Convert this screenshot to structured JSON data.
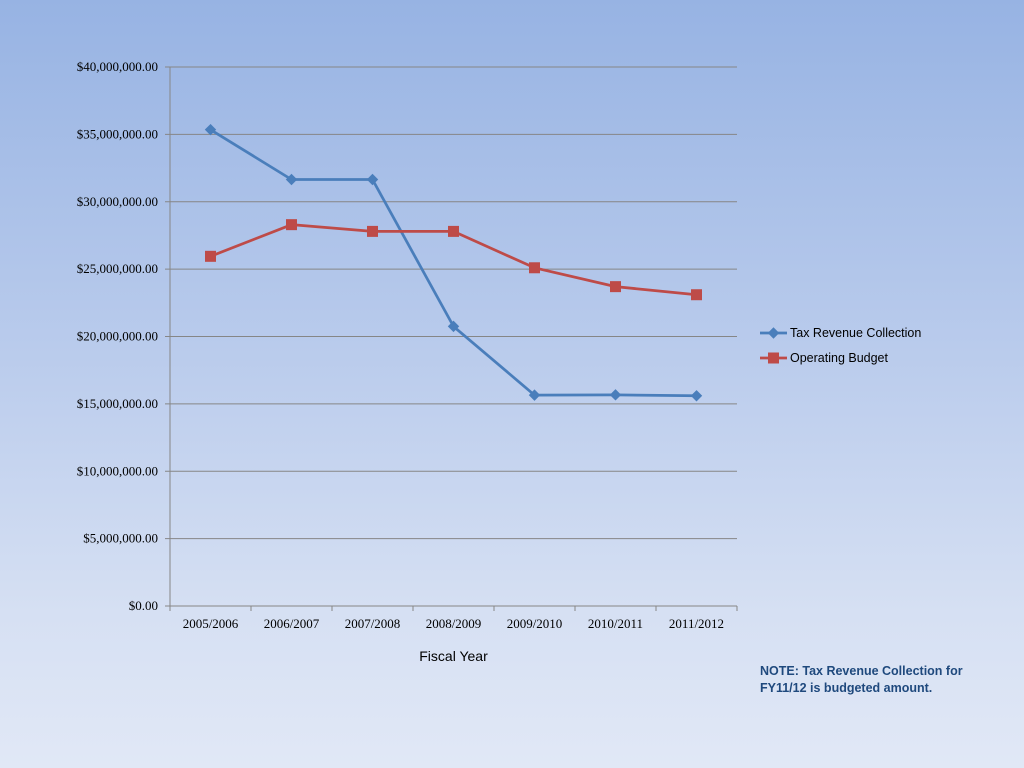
{
  "chart_data": {
    "type": "line",
    "categories": [
      "2005/2006",
      "2006/2007",
      "2007/2008",
      "2008/2009",
      "2009/2010",
      "2010/2011",
      "2011/2012"
    ],
    "series": [
      {
        "name": "Tax Revenue Collection",
        "color": "#4a7ebb",
        "marker": "diamond",
        "values": [
          35350000,
          31650000,
          31650000,
          20750000,
          15650000,
          15670000,
          15600000
        ]
      },
      {
        "name": "Operating Budget",
        "color": "#be4b48",
        "marker": "square",
        "values": [
          25950000,
          28300000,
          27800000,
          27800000,
          25100000,
          23700000,
          23100000
        ]
      }
    ],
    "y_ticks": [
      "$0.00",
      "$5,000,000.00",
      "$10,000,000.00",
      "$15,000,000.00",
      "$20,000,000.00",
      "$25,000,000.00",
      "$30,000,000.00",
      "$35,000,000.00",
      "$40,000,000.00"
    ],
    "ylim": [
      0,
      40000000
    ],
    "y_step": 5000000,
    "xlabel": "Fiscal Year",
    "ylabel": "",
    "title": "",
    "grid": true,
    "legend_position": "right"
  },
  "note": {
    "line1": "NOTE: Tax Revenue Collection for",
    "line2": "FY11/12  is budgeted amount."
  }
}
